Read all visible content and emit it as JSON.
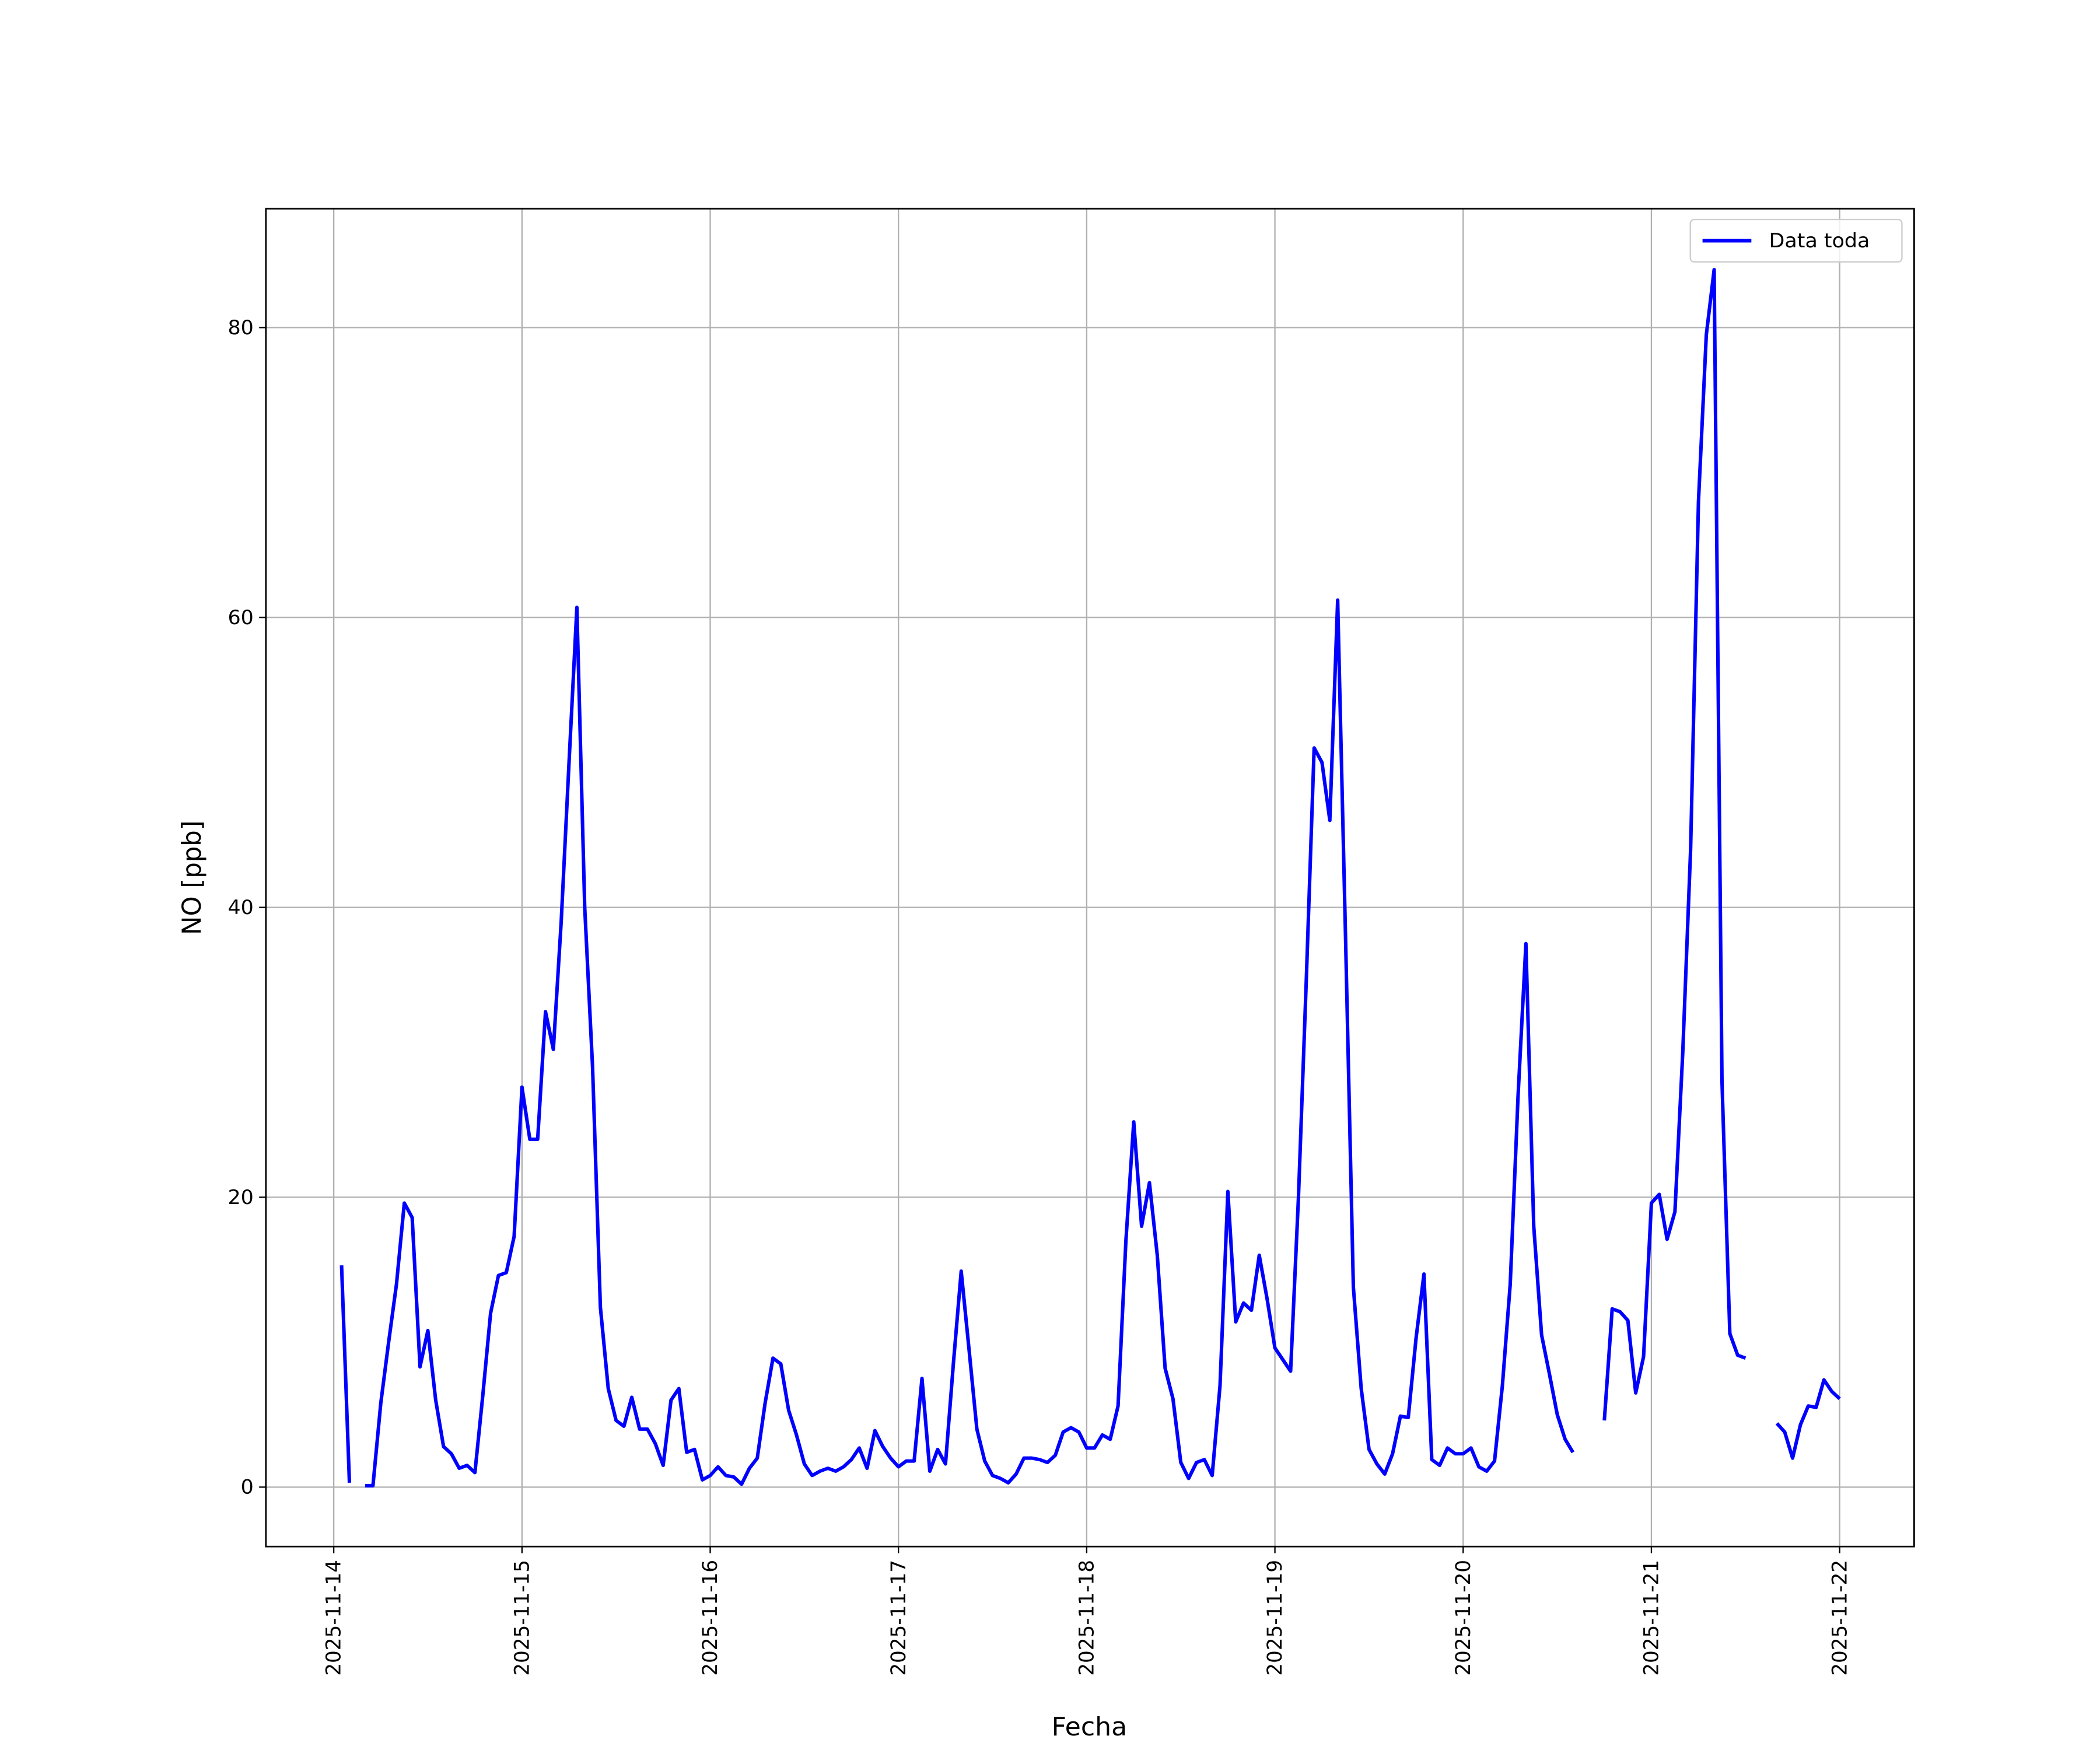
{
  "chart_data": {
    "type": "line",
    "xlabel": "Fecha",
    "ylabel": "NO [ppb]",
    "x": [
      "2025-11-14 01:00",
      "2025-11-14 02:00",
      "2025-11-14 03:00",
      "2025-11-14 04:00",
      "2025-11-14 05:00",
      "2025-11-14 06:00",
      "2025-11-14 07:00",
      "2025-11-14 08:00",
      "2025-11-14 09:00",
      "2025-11-14 10:00",
      "2025-11-14 11:00",
      "2025-11-14 12:00",
      "2025-11-14 13:00",
      "2025-11-14 14:00",
      "2025-11-14 15:00",
      "2025-11-14 16:00",
      "2025-11-14 17:00",
      "2025-11-14 18:00",
      "2025-11-14 19:00",
      "2025-11-14 20:00",
      "2025-11-14 21:00",
      "2025-11-14 22:00",
      "2025-11-14 23:00",
      "2025-11-15 00:00",
      "2025-11-15 01:00",
      "2025-11-15 02:00",
      "2025-11-15 03:00",
      "2025-11-15 04:00",
      "2025-11-15 05:00",
      "2025-11-15 06:00",
      "2025-11-15 07:00",
      "2025-11-15 08:00",
      "2025-11-15 09:00",
      "2025-11-15 10:00",
      "2025-11-15 11:00",
      "2025-11-15 12:00",
      "2025-11-15 13:00",
      "2025-11-15 14:00",
      "2025-11-15 15:00",
      "2025-11-15 16:00",
      "2025-11-15 17:00",
      "2025-11-15 18:00",
      "2025-11-15 19:00",
      "2025-11-15 20:00",
      "2025-11-15 21:00",
      "2025-11-15 22:00",
      "2025-11-15 23:00",
      "2025-11-16 00:00",
      "2025-11-16 01:00",
      "2025-11-16 02:00",
      "2025-11-16 03:00",
      "2025-11-16 04:00",
      "2025-11-16 05:00",
      "2025-11-16 06:00",
      "2025-11-16 07:00",
      "2025-11-16 08:00",
      "2025-11-16 09:00",
      "2025-11-16 10:00",
      "2025-11-16 11:00",
      "2025-11-16 12:00",
      "2025-11-16 13:00",
      "2025-11-16 14:00",
      "2025-11-16 15:00",
      "2025-11-16 16:00",
      "2025-11-16 17:00",
      "2025-11-16 18:00",
      "2025-11-16 19:00",
      "2025-11-16 20:00",
      "2025-11-16 21:00",
      "2025-11-16 22:00",
      "2025-11-16 23:00",
      "2025-11-17 00:00",
      "2025-11-17 01:00",
      "2025-11-17 02:00",
      "2025-11-17 03:00",
      "2025-11-17 04:00",
      "2025-11-17 05:00",
      "2025-11-17 06:00",
      "2025-11-17 07:00",
      "2025-11-17 08:00",
      "2025-11-17 09:00",
      "2025-11-17 10:00",
      "2025-11-17 11:00",
      "2025-11-17 12:00",
      "2025-11-17 13:00",
      "2025-11-17 14:00",
      "2025-11-17 15:00",
      "2025-11-17 16:00",
      "2025-11-17 17:00",
      "2025-11-17 18:00",
      "2025-11-17 19:00",
      "2025-11-17 20:00",
      "2025-11-17 21:00",
      "2025-11-17 22:00",
      "2025-11-17 23:00",
      "2025-11-18 00:00",
      "2025-11-18 01:00",
      "2025-11-18 02:00",
      "2025-11-18 03:00",
      "2025-11-18 04:00",
      "2025-11-18 05:00",
      "2025-11-18 06:00",
      "2025-11-18 07:00",
      "2025-11-18 08:00",
      "2025-11-18 09:00",
      "2025-11-18 10:00",
      "2025-11-18 11:00",
      "2025-11-18 12:00",
      "2025-11-18 13:00",
      "2025-11-18 14:00",
      "2025-11-18 15:00",
      "2025-11-18 16:00",
      "2025-11-18 17:00",
      "2025-11-18 18:00",
      "2025-11-18 19:00",
      "2025-11-18 20:00",
      "2025-11-18 21:00",
      "2025-11-18 22:00",
      "2025-11-18 23:00",
      "2025-11-19 00:00",
      "2025-11-19 01:00",
      "2025-11-19 02:00",
      "2025-11-19 03:00",
      "2025-11-19 04:00",
      "2025-11-19 05:00",
      "2025-11-19 06:00",
      "2025-11-19 07:00",
      "2025-11-19 08:00",
      "2025-11-19 09:00",
      "2025-11-19 10:00",
      "2025-11-19 11:00",
      "2025-11-19 12:00",
      "2025-11-19 13:00",
      "2025-11-19 14:00",
      "2025-11-19 15:00",
      "2025-11-19 16:00",
      "2025-11-19 17:00",
      "2025-11-19 18:00",
      "2025-11-19 19:00",
      "2025-11-19 20:00",
      "2025-11-19 21:00",
      "2025-11-19 22:00",
      "2025-11-19 23:00",
      "2025-11-20 00:00",
      "2025-11-20 01:00",
      "2025-11-20 02:00",
      "2025-11-20 03:00",
      "2025-11-20 04:00",
      "2025-11-20 05:00",
      "2025-11-20 06:00",
      "2025-11-20 07:00",
      "2025-11-20 08:00",
      "2025-11-20 09:00",
      "2025-11-20 10:00",
      "2025-11-20 11:00",
      "2025-11-20 12:00",
      "2025-11-20 13:00",
      "2025-11-20 14:00",
      "2025-11-20 15:00",
      "2025-11-20 16:00",
      "2025-11-20 17:00",
      "2025-11-20 18:00",
      "2025-11-20 19:00",
      "2025-11-20 20:00",
      "2025-11-20 21:00",
      "2025-11-20 22:00",
      "2025-11-20 23:00",
      "2025-11-21 00:00",
      "2025-11-21 01:00",
      "2025-11-21 02:00",
      "2025-11-21 03:00",
      "2025-11-21 04:00",
      "2025-11-21 05:00",
      "2025-11-21 06:00",
      "2025-11-21 07:00",
      "2025-11-21 08:00",
      "2025-11-21 09:00",
      "2025-11-21 10:00",
      "2025-11-21 11:00",
      "2025-11-21 12:00",
      "2025-11-21 13:00",
      "2025-11-21 14:00",
      "2025-11-21 15:00",
      "2025-11-21 16:00",
      "2025-11-21 17:00",
      "2025-11-21 18:00",
      "2025-11-21 19:00",
      "2025-11-21 20:00",
      "2025-11-21 21:00",
      "2025-11-21 22:00",
      "2025-11-21 23:00",
      "2025-11-22 00:00"
    ],
    "series": [
      {
        "name": "Data toda",
        "color": "#0000ff",
        "values": [
          15.3,
          0.3,
          null,
          0.1,
          0.1,
          5.8,
          10,
          14,
          19.6,
          18.6,
          8.3,
          10.8,
          6,
          2.8,
          2.3,
          1.3,
          1.5,
          1,
          6.3,
          12,
          14.6,
          14.8,
          17.3,
          27.6,
          24,
          24,
          32.8,
          30.2,
          39,
          50,
          60.7,
          40,
          29,
          12.4,
          6.8,
          4.6,
          4.2,
          6.2,
          4,
          4,
          3,
          1.5,
          6,
          6.8,
          2.4,
          2.6,
          0.5,
          0.8,
          1.4,
          0.8,
          0.7,
          0.2,
          1.3,
          2,
          5.8,
          8.9,
          8.5,
          5.3,
          3.6,
          1.6,
          0.8,
          1.1,
          1.3,
          1.1,
          1.4,
          1.9,
          2.7,
          1.3,
          3.9,
          2.8,
          2,
          1.4,
          1.8,
          1.8,
          7.5,
          1.1,
          2.6,
          1.6,
          8.5,
          14.9,
          9.5,
          4,
          1.8,
          0.8,
          0.6,
          0.3,
          0.9,
          2,
          2,
          1.9,
          1.7,
          2.2,
          3.8,
          4.1,
          3.8,
          2.7,
          2.7,
          3.6,
          3.3,
          5.6,
          17,
          25.2,
          18,
          21,
          16,
          8.2,
          6.1,
          1.7,
          0.6,
          1.7,
          1.9,
          0.8,
          7,
          20.4,
          11.4,
          12.7,
          12.2,
          16,
          13,
          9.6,
          8.8,
          8,
          20,
          35,
          51,
          50,
          46,
          61.2,
          38,
          13.8,
          6.8,
          2.6,
          1.6,
          0.9,
          2.3,
          4.9,
          4.8,
          10.3,
          14.7,
          1.9,
          1.5,
          2.7,
          2.3,
          2.3,
          2.7,
          1.4,
          1.1,
          1.8,
          7,
          14,
          27,
          37.5,
          18,
          10.5,
          7.8,
          5,
          3.3,
          2.4,
          null,
          null,
          null,
          4.6,
          12.3,
          12.1,
          11.5,
          6.5,
          9,
          19.6,
          20.2,
          17.1,
          19,
          30,
          44,
          68,
          79.5,
          84,
          28,
          10.6,
          9.1,
          8.9,
          null,
          null,
          null,
          4.4,
          3.8,
          2,
          4.3,
          5.6,
          5.5,
          7.4,
          6.6,
          6.1
        ]
      }
    ],
    "xlim": [
      "2025-11-13 15:21",
      "2025-11-22 09:30"
    ],
    "xticks": [
      "2025-11-14",
      "2025-11-15",
      "2025-11-16",
      "2025-11-17",
      "2025-11-18",
      "2025-11-19",
      "2025-11-20",
      "2025-11-21",
      "2025-11-22"
    ],
    "ylim": [
      -4.1,
      88.2
    ],
    "yticks": [
      0,
      20,
      40,
      60,
      80
    ],
    "grid": true,
    "legend": "upper right"
  }
}
